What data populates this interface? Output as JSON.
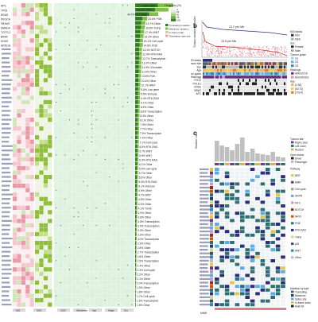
{
  "panels": {
    "a": "",
    "b": "b",
    "c": "c"
  },
  "panel_a": {
    "genes_top": [
      "APC",
      "TP53",
      "KRAS",
      "PIK3CA",
      "FBXW7",
      "SMAD4",
      "TCF7L2",
      "BRAF",
      "SOX9",
      "ARID1A"
    ],
    "percent_labels": [
      {
        "value": "73.8%",
        "category": "WNT"
      },
      {
        "value": "64.4%",
        "category": "TP53"
      },
      {
        "value": "44.7%",
        "category": "RTK-RAS"
      },
      {
        "value": "23.6%",
        "category": "PI3K"
      },
      {
        "value": "19.7%",
        "category": "Other"
      },
      {
        "value": "18.8%",
        "category": "TGFβ"
      },
      {
        "value": "17.4%",
        "category": "WNT"
      },
      {
        "value": "16.2%",
        "category": "Other"
      },
      {
        "value": "15.1%",
        "category": "Cell cycle"
      },
      {
        "value": "14.8%",
        "category": "PI3K"
      },
      {
        "value": "13.1%",
        "category": "NOTCH"
      },
      {
        "value": "12.9%",
        "category": "RTK-RAS"
      },
      {
        "value": "12.7%",
        "category": "Transcription"
      },
      {
        "value": "12.0%",
        "category": "Other"
      },
      {
        "value": "11.9%",
        "category": "Chromatin"
      },
      {
        "value": "11.6%",
        "category": "Other"
      },
      {
        "value": "10.8%",
        "category": "PI3K"
      },
      {
        "value": "10.4%",
        "category": "Other"
      },
      {
        "value": "10.1%",
        "category": "WNT"
      },
      {
        "value": "9.8%",
        "category": "Low gene"
      },
      {
        "value": "9.5%",
        "category": "Immune"
      },
      {
        "value": "9.3%",
        "category": "RTK-RAS"
      },
      {
        "value": "9.1%",
        "category": "Other"
      },
      {
        "value": "8.9%",
        "category": "Other"
      },
      {
        "value": "8.6%",
        "category": "Transcription"
      },
      {
        "value": "8.3%",
        "category": "Other"
      },
      {
        "value": "8.1%",
        "category": "Other"
      },
      {
        "value": "7.9%",
        "category": "Other"
      },
      {
        "value": "7.7%",
        "category": "Other"
      },
      {
        "value": "7.5%",
        "category": "Transcription"
      },
      {
        "value": "7.3%",
        "category": "Other"
      },
      {
        "value": "7.1%",
        "category": "Cell cycle"
      },
      {
        "value": "6.9%",
        "category": "RTK-RAS"
      },
      {
        "value": "6.7%",
        "category": "WNT"
      },
      {
        "value": "6.5%",
        "category": "WNT"
      },
      {
        "value": "6.3%",
        "category": "RTK-RAS"
      },
      {
        "value": "6.1%",
        "category": "Other"
      },
      {
        "value": "5.9%",
        "category": "Cell cycle"
      },
      {
        "value": "5.7%",
        "category": "Other"
      },
      {
        "value": "5.5%",
        "category": "Other"
      },
      {
        "value": "5.3%",
        "category": "RTK-RAS"
      },
      {
        "value": "5.1%",
        "category": "Immune"
      },
      {
        "value": "4.9%",
        "category": "Other"
      },
      {
        "value": "4.7%",
        "category": "WNT"
      },
      {
        "value": "4.5%",
        "category": "Other"
      },
      {
        "value": "4.3%",
        "category": "Other"
      },
      {
        "value": "4.1%",
        "category": "TGFβ"
      },
      {
        "value": "3.9%",
        "category": "Other"
      },
      {
        "value": "3.8%",
        "category": "Other"
      },
      {
        "value": "3.6%",
        "category": "Transcription"
      },
      {
        "value": "3.5%",
        "category": "Transcription"
      },
      {
        "value": "3.3%",
        "category": "Other"
      },
      {
        "value": "3.2%",
        "category": "Other"
      },
      {
        "value": "3.0%",
        "category": "Transcription"
      },
      {
        "value": "2.9%",
        "category": "Other"
      },
      {
        "value": "2.8%",
        "category": "Other"
      },
      {
        "value": "2.7%",
        "category": "Transcription"
      },
      {
        "value": "2.6%",
        "category": "Other"
      },
      {
        "value": "2.5%",
        "category": "Transcription"
      },
      {
        "value": "2.4%",
        "category": "Other"
      },
      {
        "value": "2.3%",
        "category": "Cell cycle"
      },
      {
        "value": "2.2%",
        "category": "Other"
      },
      {
        "value": "2.1%",
        "category": "Other"
      },
      {
        "value": "2.0%",
        "category": "Transcription"
      },
      {
        "value": "1.9%",
        "category": "Other"
      },
      {
        "value": "1.8%",
        "category": "Other"
      },
      {
        "value": "1.7%",
        "category": "Cell cycle"
      },
      {
        "value": "1.6%",
        "category": "Transcription"
      },
      {
        "value": "1.5%",
        "category": "Other"
      }
    ],
    "column_groups": [
      "MSI",
      "MSS",
      "CMS",
      "Sidedness",
      "Age",
      "Stage",
      "Sex"
    ],
    "legend": {
      "title": "Frequency (%)",
      "ticks": [
        "0",
        "25",
        "50",
        "75",
        "100"
      ],
      "mutation_types": [
        "Truncating mutation",
        "Missense mutation",
        "In-frame indel",
        "Translation start site"
      ]
    }
  },
  "panel_b": {
    "ylabel": "Tumour mutational burden",
    "annotations": [
      "23.2 per Mb",
      "10.5 per Mb"
    ],
    "tracks": [
      "MSI status",
      "Tumour site",
      "Sex",
      "Age",
      "Tumour grade",
      "Histology",
      "POLE",
      "POLD1",
      "KRAS",
      "BRAF",
      "APC"
    ],
    "legend_items": [
      "MSI status",
      "MSI",
      "MSS",
      "Sex",
      "Female",
      "Male",
      "Tumour grade",
      "G1",
      "G2",
      "G3",
      "Histology",
      "ADENOCA",
      "MUCINOUS",
      "Age",
      "(0,50]",
      "(50,70]",
      "(70,inf)"
    ]
  },
  "panel_c": {
    "ylabel": "Mutation count",
    "tumour_legend": [
      "Tumour site",
      "Right colon",
      "Left colon",
      "Rectum"
    ],
    "gene_status": [
      "Gene status",
      "Driver",
      "Passenger"
    ],
    "pathways": [
      "Pathway",
      "BER",
      "MMR",
      "Cell cycle",
      "HRPR",
      "MYC",
      "NOTCH",
      "NRF2",
      "PI3K",
      "RTK-RAS",
      "TGFβ",
      "p53",
      "WNT",
      "Other"
    ],
    "mutation_by_type": [
      "Mutation by type",
      "Truncating",
      "Missense",
      "Splice site",
      "In-frame indel",
      "Multi-hit"
    ],
    "footer": "MMR"
  },
  "colors": {
    "green_dark": "#2e7d1f",
    "green_mid": "#7fbf4a",
    "pink": "#e8a5ae",
    "navy": "#2b2f7a",
    "teal": "#2d6f73",
    "red": "#c0392b"
  }
}
